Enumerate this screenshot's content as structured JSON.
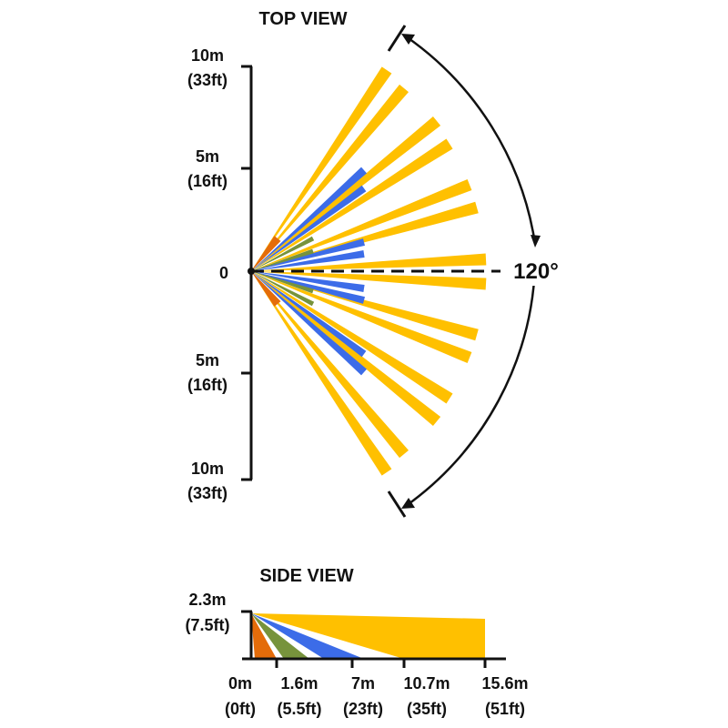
{
  "top_view": {
    "title": "TOP VIEW",
    "y_labels": [
      {
        "line1": "10m",
        "line2": "(33ft)"
      },
      {
        "line1": "5m",
        "line2": "(16ft)"
      },
      {
        "line1": "0",
        "line2": ""
      },
      {
        "line1": "5m",
        "line2": "(16ft)"
      },
      {
        "line1": "10m",
        "line2": "(33ft)"
      }
    ],
    "angle_label": "120°",
    "coverage_angle_deg": 120
  },
  "side_view": {
    "title": "SIDE VIEW",
    "height_label": {
      "line1": "2.3m",
      "line2": "(7.5ft)"
    },
    "x_labels": [
      {
        "line1": "0m",
        "line2": "(0ft)"
      },
      {
        "line1": "1.6m",
        "line2": "(5.5ft)"
      },
      {
        "line1": "7m",
        "line2": "(23ft)"
      },
      {
        "line1": "10.7m",
        "line2": "(35ft)"
      },
      {
        "line1": "15.6m",
        "line2": "(51ft)"
      }
    ]
  },
  "colors": {
    "yellow": "#FFC000",
    "blue": "#3C6CE8",
    "green": "#77933C",
    "orange": "#E46C0A",
    "axis": "#111111"
  }
}
